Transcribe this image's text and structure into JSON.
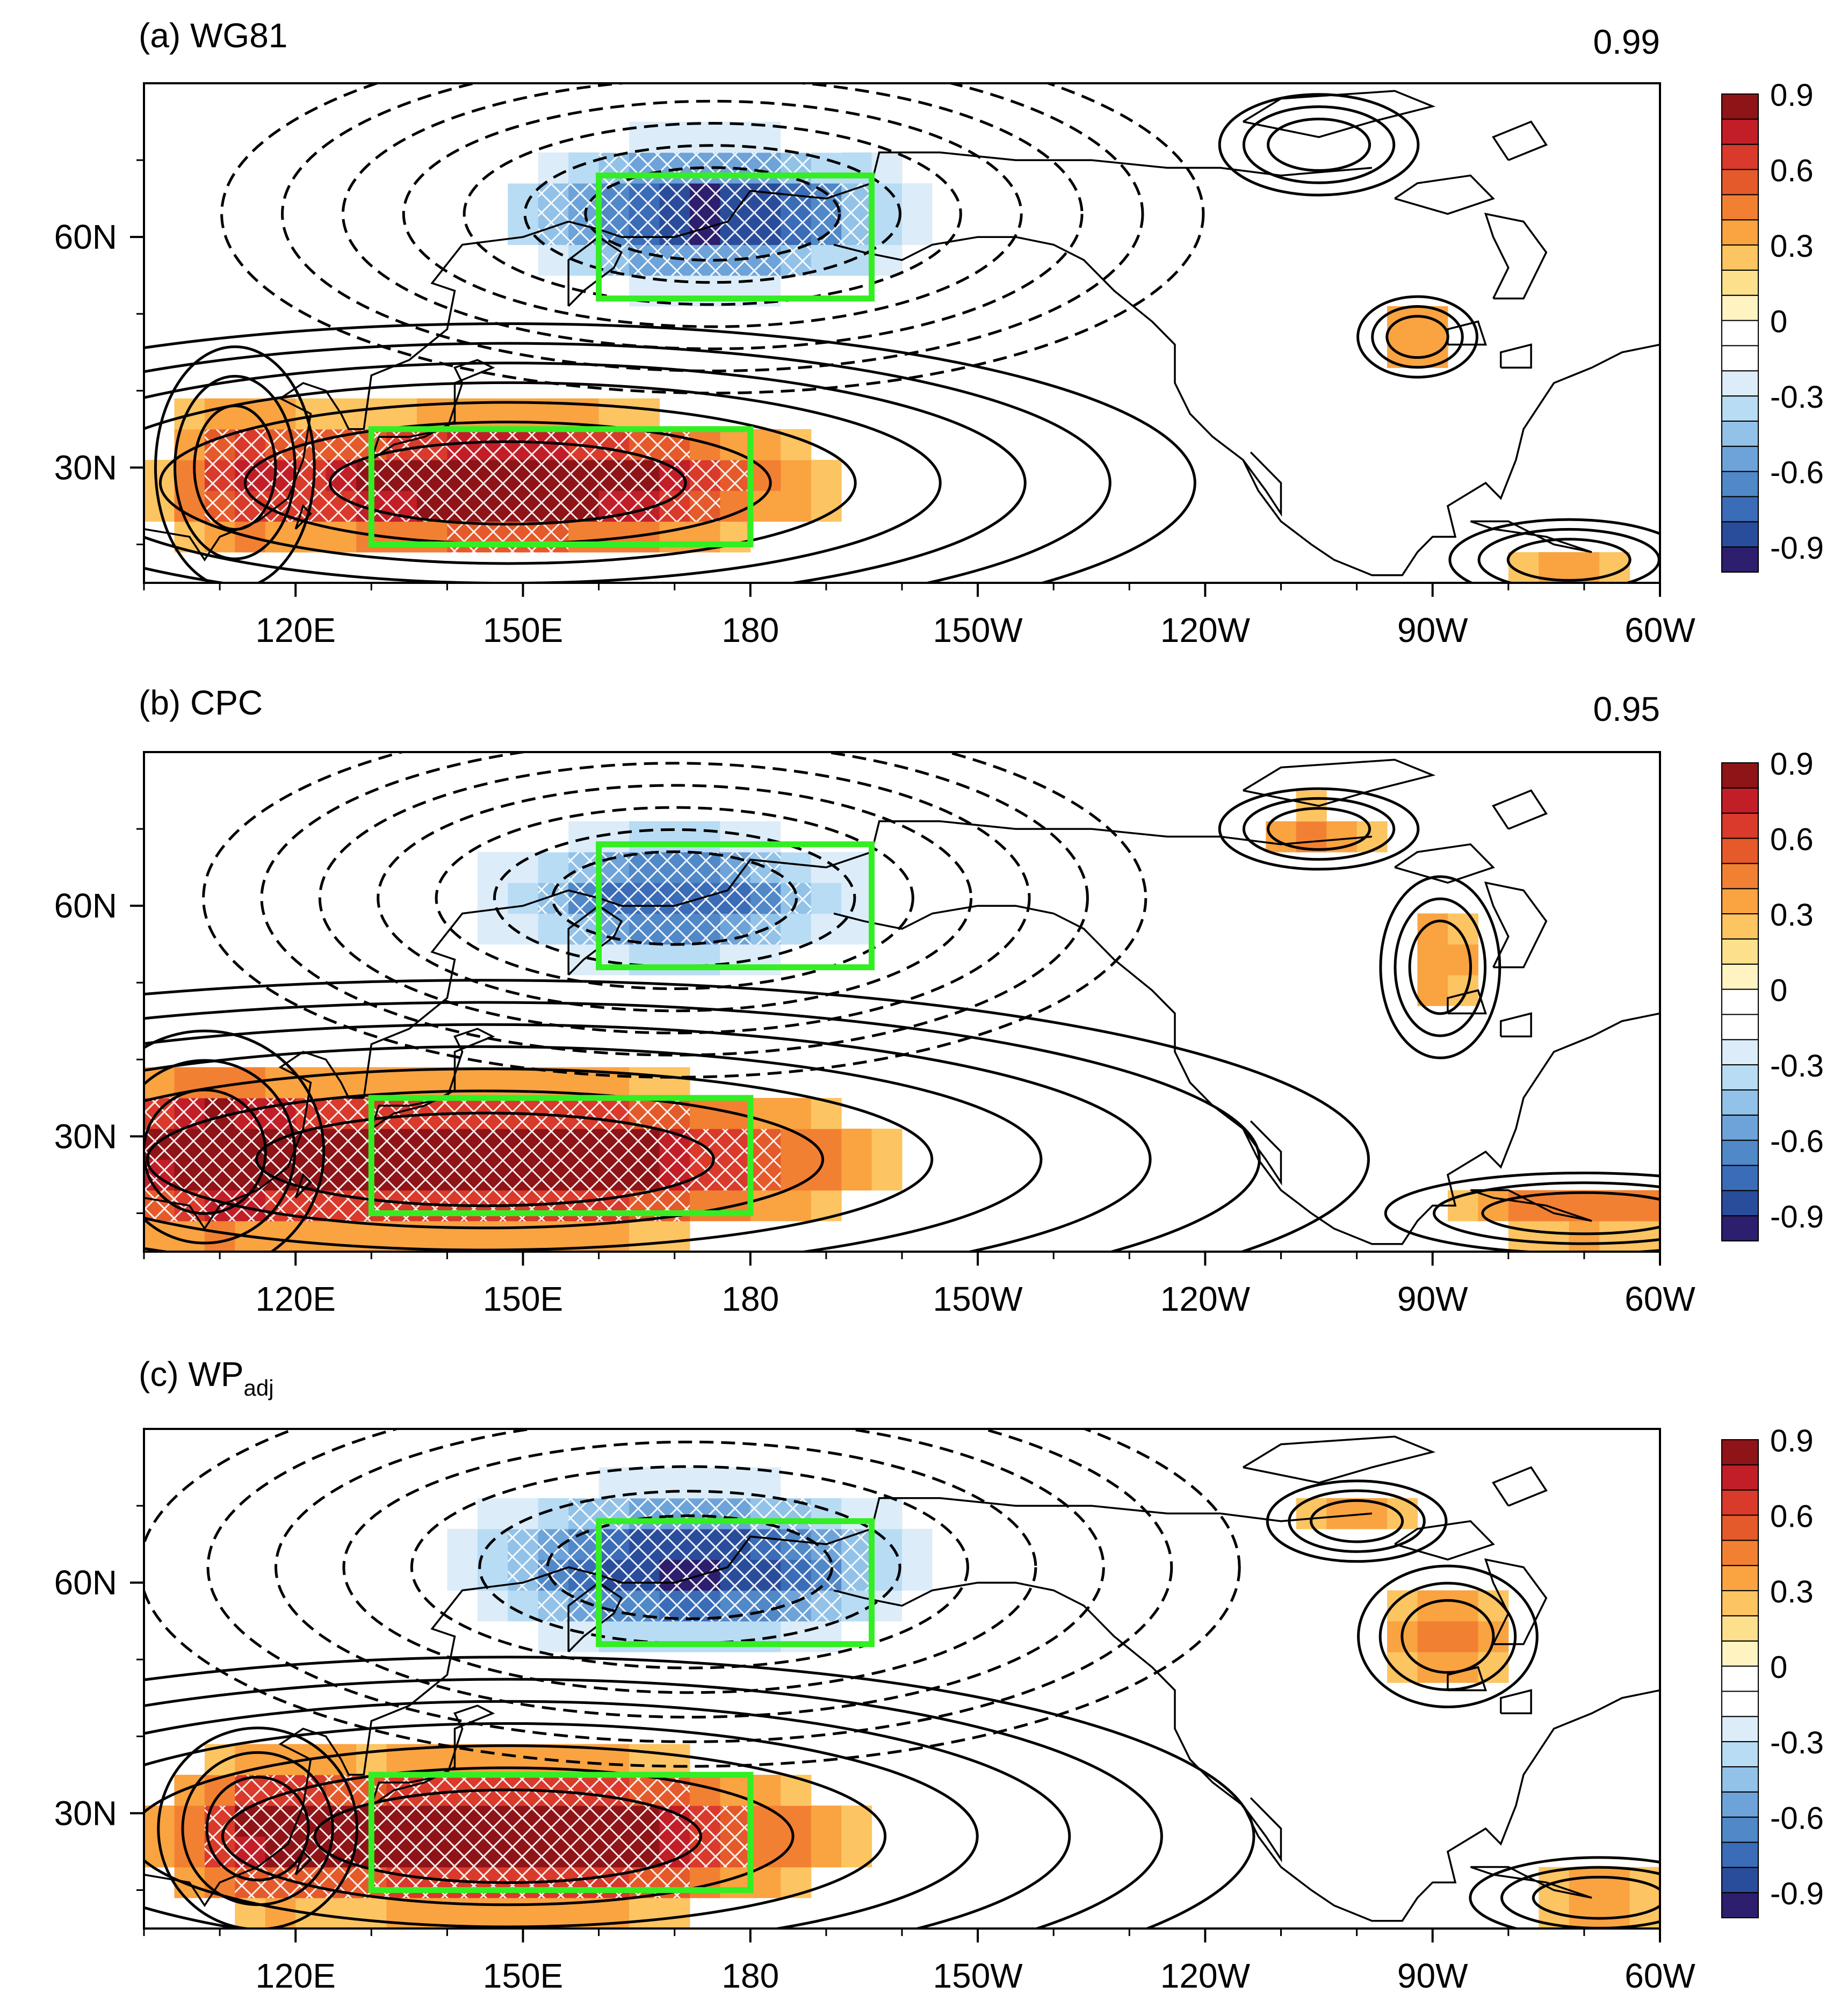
{
  "figure": {
    "panels": [
      {
        "id": "a",
        "title_prefix": "(a) ",
        "title_main": "WG81",
        "title_sub": "",
        "corr": "0.99",
        "variant": 0
      },
      {
        "id": "b",
        "title_prefix": "(b) ",
        "title_main": "CPC",
        "title_sub": "",
        "corr": "0.95",
        "variant": 1
      },
      {
        "id": "c",
        "title_prefix": "(c) ",
        "title_main": "WP",
        "title_sub": "adj",
        "corr": "",
        "variant": 2
      }
    ],
    "lon_ticks": [
      "120E",
      "150E",
      "180",
      "150W",
      "120W",
      "90W",
      "60W"
    ],
    "lon_tick_values": [
      120,
      150,
      180,
      210,
      240,
      270,
      300
    ],
    "lat_ticks": [
      "60N",
      "30N"
    ],
    "lat_tick_values": [
      60,
      30
    ],
    "lon_range": [
      100,
      300
    ],
    "lat_range": [
      15,
      80
    ],
    "colorbar": {
      "labels": [
        "0.9",
        "0.6",
        "0.3",
        "0",
        "-0.3",
        "-0.6",
        "-0.9"
      ],
      "label_values": [
        0.9,
        0.6,
        0.3,
        0,
        -0.3,
        -0.6,
        -0.9
      ],
      "colors": [
        "#2d1e6e",
        "#2a4d9b",
        "#3b6cb8",
        "#5088c8",
        "#6da3d8",
        "#92c2e8",
        "#b8dcf4",
        "#dcedf9",
        "#ffffff",
        "#ffffff",
        "#fff3c2",
        "#fde08c",
        "#fdc462",
        "#f9a341",
        "#f28032",
        "#e55a2b",
        "#d93a2b",
        "#c21e28",
        "#8e1418"
      ]
    },
    "boxes": [
      {
        "name": "north-pacific-box",
        "lon": [
          160,
          196
        ],
        "lat": [
          52,
          68
        ]
      },
      {
        "name": "subtropical-box",
        "lon": [
          130,
          180
        ],
        "lat": [
          20,
          35
        ]
      }
    ]
  }
}
